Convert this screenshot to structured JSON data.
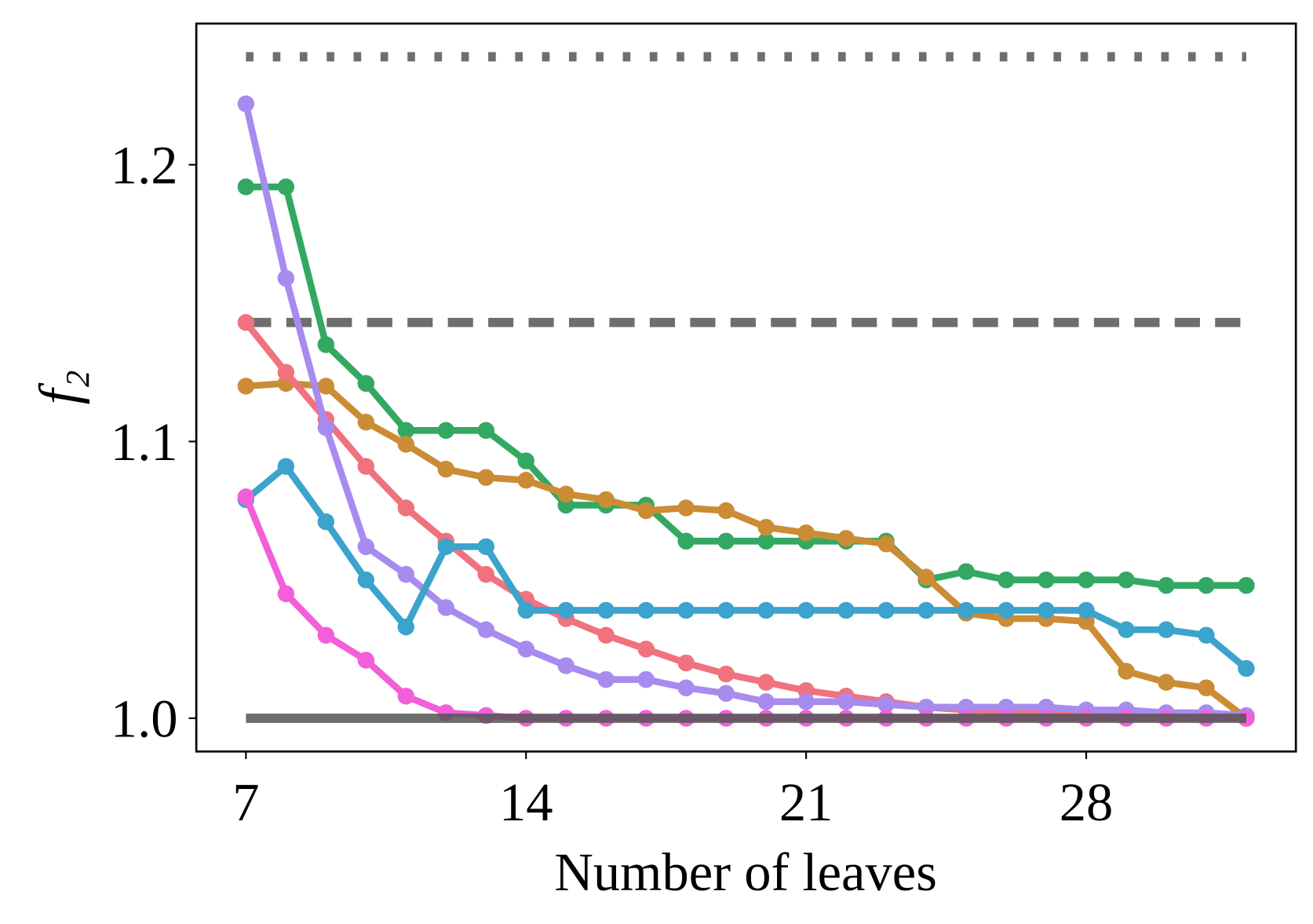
{
  "chart_data": {
    "type": "line",
    "xlabel": "Number of leaves",
    "ylabel": "f₂",
    "x": [
      7,
      8,
      9,
      10,
      11,
      12,
      13,
      14,
      15,
      16,
      17,
      18,
      19,
      20,
      21,
      22,
      23,
      24,
      25,
      26,
      27,
      28,
      29,
      30,
      31,
      32
    ],
    "xlim": [
      5.76,
      33.24
    ],
    "xticks": [
      7,
      14,
      21,
      28
    ],
    "ylim": [
      0.988,
      1.251
    ],
    "yticks": [
      {
        "value": 1,
        "label": "1.0"
      },
      1.1,
      1.2
    ],
    "grid": false,
    "series": [
      {
        "color": "#33a862",
        "values": [
          1.192,
          1.192,
          1.135,
          1.121,
          1.104,
          1.104,
          1.104,
          1.093,
          1.077,
          1.077,
          1.077,
          1.064,
          1.064,
          1.064,
          1.064,
          1.064,
          1.064,
          1.05,
          1.053,
          1.05,
          1.05,
          1.05,
          1.05,
          1.048,
          1.048,
          1.048
        ]
      },
      {
        "color": "#cc8c35",
        "values": [
          1.12,
          1.121,
          1.12,
          1.107,
          1.099,
          1.09,
          1.087,
          1.086,
          1.081,
          1.079,
          1.075,
          1.076,
          1.075,
          1.069,
          1.067,
          1.065,
          1.063,
          1.051,
          1.038,
          1.036,
          1.036,
          1.035,
          1.017,
          1.013,
          1.011,
          1.0
        ]
      },
      {
        "color": "#f0727e",
        "values": [
          1.143,
          1.125,
          1.108,
          1.091,
          1.076,
          1.064,
          1.052,
          1.043,
          1.036,
          1.03,
          1.025,
          1.02,
          1.016,
          1.013,
          1.01,
          1.008,
          1.006,
          1.004,
          1.003,
          1.002,
          1.002,
          1.001,
          1.001,
          1.001,
          1.001,
          1.0
        ]
      },
      {
        "color": "#a78bef",
        "values": [
          1.222,
          1.159,
          1.105,
          1.062,
          1.052,
          1.04,
          1.032,
          1.025,
          1.019,
          1.014,
          1.014,
          1.011,
          1.009,
          1.006,
          1.006,
          1.006,
          1.005,
          1.004,
          1.004,
          1.004,
          1.004,
          1.003,
          1.003,
          1.002,
          1.002,
          1.001
        ]
      },
      {
        "color": "#3ba3cc",
        "values": [
          1.079,
          1.091,
          1.071,
          1.05,
          1.033,
          1.062,
          1.062,
          1.039,
          1.039,
          1.039,
          1.039,
          1.039,
          1.039,
          1.039,
          1.039,
          1.039,
          1.039,
          1.039,
          1.039,
          1.039,
          1.039,
          1.039,
          1.032,
          1.032,
          1.03,
          1.018
        ]
      },
      {
        "color": "#f25fd8",
        "values": [
          1.08,
          1.045,
          1.03,
          1.021,
          1.008,
          1.002,
          1.001,
          1.0,
          1.0,
          1.0,
          1.0,
          1.0,
          1.0,
          1.0,
          1.0,
          1.0,
          1.0,
          1.0,
          1.0,
          1.0,
          1.0,
          1.0,
          1.0,
          1.0,
          1.0,
          1.0
        ]
      }
    ],
    "hlines": [
      {
        "value": 1.239,
        "style": "dotted",
        "color": "#555555"
      },
      {
        "value": 1.143,
        "style": "dashed",
        "color": "#555555"
      },
      {
        "value": 1.0,
        "style": "solid",
        "color": "#555555"
      }
    ]
  }
}
